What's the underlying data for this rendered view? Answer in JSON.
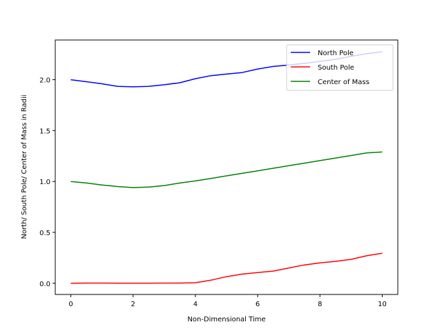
{
  "chart_data": {
    "type": "line",
    "title": "",
    "xlabel": "Non-Dimensional Time",
    "ylabel": "North/ South Pole/ Center of Mass in Radii",
    "xlim": [
      -0.5,
      10.5
    ],
    "ylim": [
      -0.11,
      2.39
    ],
    "xticks": [
      0,
      2,
      4,
      6,
      8,
      10
    ],
    "xtick_labels": [
      "0",
      "2",
      "4",
      "6",
      "8",
      "10"
    ],
    "yticks": [
      0.0,
      0.5,
      1.0,
      1.5,
      2.0
    ],
    "ytick_labels": [
      "0.0",
      "0.5",
      "1.0",
      "1.5",
      "2.0"
    ],
    "grid": false,
    "legend_position": "top-right",
    "x": [
      0,
      0.5,
      1,
      1.5,
      2,
      2.5,
      3,
      3.5,
      4,
      4.5,
      5,
      5.5,
      6,
      6.5,
      7,
      7.5,
      8,
      8.5,
      9,
      9.5,
      10
    ],
    "series": [
      {
        "name": "North Pole",
        "color": "#0000ff",
        "values": [
          2.0,
          1.98,
          1.96,
          1.935,
          1.93,
          1.935,
          1.95,
          1.97,
          2.01,
          2.04,
          2.055,
          2.07,
          2.105,
          2.13,
          2.145,
          2.16,
          2.18,
          2.2,
          2.23,
          2.255,
          2.275
        ]
      },
      {
        "name": "South Pole",
        "color": "#ff0000",
        "values": [
          0.0,
          0.002,
          0.002,
          0.001,
          0.001,
          0.001,
          0.002,
          0.002,
          0.005,
          0.03,
          0.065,
          0.09,
          0.105,
          0.12,
          0.15,
          0.18,
          0.2,
          0.215,
          0.235,
          0.27,
          0.295
        ]
      },
      {
        "name": "Center of Mass",
        "color": "#008000",
        "values": [
          1.0,
          0.985,
          0.965,
          0.95,
          0.94,
          0.945,
          0.96,
          0.985,
          1.005,
          1.03,
          1.055,
          1.08,
          1.105,
          1.13,
          1.155,
          1.18,
          1.205,
          1.23,
          1.255,
          1.28,
          1.29
        ]
      }
    ]
  }
}
